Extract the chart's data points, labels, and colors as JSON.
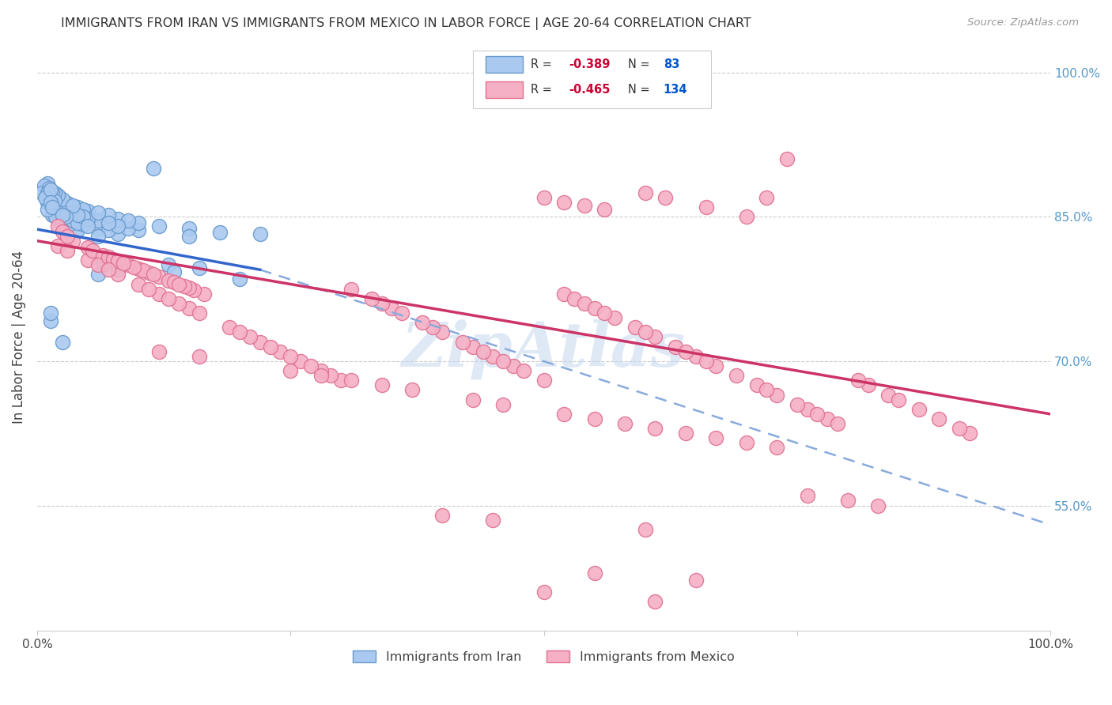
{
  "title": "IMMIGRANTS FROM IRAN VS IMMIGRANTS FROM MEXICO IN LABOR FORCE | AGE 20-64 CORRELATION CHART",
  "source": "Source: ZipAtlas.com",
  "ylabel": "In Labor Force | Age 20-64",
  "xlim": [
    0.0,
    1.0
  ],
  "ylim": [
    0.42,
    1.03
  ],
  "x_tick_labels": [
    "0.0%",
    "",
    "",
    "",
    "100.0%"
  ],
  "y_tick_labels_right": [
    "55.0%",
    "70.0%",
    "85.0%",
    "100.0%"
  ],
  "y_tick_vals_right": [
    0.55,
    0.7,
    0.85,
    1.0
  ],
  "iran_color": "#aac9f0",
  "iran_edge_color": "#6699cc",
  "mexico_color": "#f5b0c5",
  "mexico_edge_color": "#e07090",
  "iran_R": -0.389,
  "iran_N": 83,
  "mexico_R": -0.465,
  "mexico_N": 134,
  "watermark": "ZipAtlas",
  "legend_R_color": "#cc0033",
  "legend_N_color": "#0055aa",
  "iran_line_color": "#3366cc",
  "iran_dash_color": "#88aadd",
  "mexico_line_color": "#cc3366",
  "iran_line_x0": 0.0,
  "iran_line_y0": 0.837,
  "iran_line_x1": 0.22,
  "iran_line_y1": 0.795,
  "iran_line_full_x1": 1.0,
  "iran_line_full_y1": 0.53,
  "mexico_line_x0": 0.0,
  "mexico_line_y0": 0.825,
  "mexico_line_x1": 1.0,
  "mexico_line_y1": 0.645
}
